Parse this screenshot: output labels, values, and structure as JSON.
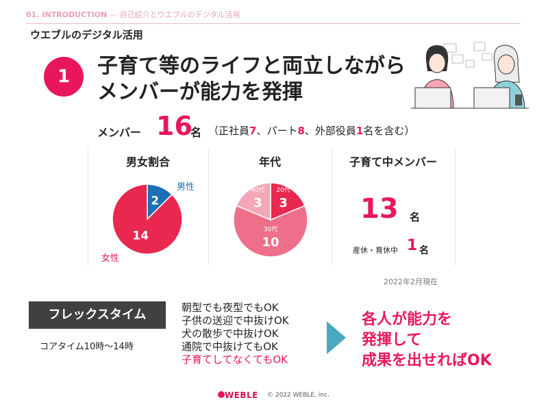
{
  "header": {
    "section": "01. INTRODUCTION",
    "section_sub": "— 自己紹介とウエブルのデジタル活用",
    "title": "ウエブルのデジタル活用"
  },
  "headline": {
    "number": "1",
    "line1": "子育て等のライフと両立しながら",
    "line2": "メンバーが能力を発揮"
  },
  "members": {
    "label": "メンバー",
    "count": "16",
    "unit": "名",
    "detail_open": "（正社員",
    "fulltime": "7",
    "detail_mid1": "、パート",
    "parttime": "8",
    "detail_mid2": "、外部役員",
    "external": "1",
    "detail_close": "名を含む）"
  },
  "stats": {
    "gender_title": "男女割合",
    "male_label": "男性",
    "female_label": "女性",
    "age_title": "年代",
    "kids_title": "子育て中メンバー",
    "kids_count": "13",
    "kids_unit": "名",
    "leave_label": "産休・育休中",
    "leave_count": "1",
    "leave_unit": "名",
    "as_of": "2022年2月現在"
  },
  "chart_data": [
    {
      "type": "pie",
      "title": "男女割合",
      "categories": [
        "男性",
        "女性"
      ],
      "values": [
        2,
        14
      ],
      "colors": [
        "#1a6fb5",
        "#e8284f"
      ]
    },
    {
      "type": "pie",
      "title": "年代",
      "categories": [
        "20代",
        "30代",
        "40代"
      ],
      "values": [
        3,
        10,
        3
      ],
      "colors": [
        "#e8284f",
        "#ee6f8a",
        "#f4a7b7"
      ]
    }
  ],
  "flex": {
    "label": "フレックスタイム",
    "core_time": "コアタイム10時～14時",
    "items": [
      "朝型でも夜型でもOK",
      "子供の送迎で中抜けOK",
      "犬の散歩で中抜けOK",
      "通院で中抜けてもOK",
      "子育てしてなくてもOK"
    ],
    "conclusion": [
      "各人が能力を",
      "発揮して",
      "成果を出せればOK"
    ]
  },
  "footer": {
    "brand": "WEBLE",
    "copyright": "© 2022 WEBLE, inc."
  },
  "colors": {
    "accent": "#e8175d",
    "male": "#1a6fb5",
    "dark_box": "#404040",
    "arrow": "#4aa8c0"
  },
  "illustration": "two-women-at-laptops"
}
